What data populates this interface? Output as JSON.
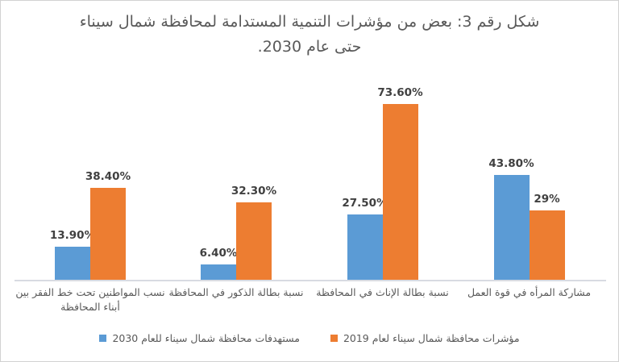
{
  "chart_data": {
    "type": "bar",
    "rtl": true,
    "title": "شكل رقم 3: بعض من مؤشرات التنمية المستدامة لمحافظة شمال سيناء\nحتى عام 2030.",
    "categories": [
      "نسب المواطنين تحت خط الفقر بين\nأبناء المحافظة",
      "نسبة بطالة الذكور في المحافظة",
      "نسبة بطالة الإناث في المحافظة",
      "مشاركة المرأه في قوة العمل"
    ],
    "series": [
      {
        "name": "مستهدفات محافظة شمال سيناء للعام 2030",
        "color": "#5B9BD5",
        "values": [
          13.9,
          6.4,
          27.5,
          43.8
        ],
        "labels": [
          "13.90%",
          "6.40%",
          "27.50%",
          "43.80%"
        ]
      },
      {
        "name": "مؤشرات محافظة شمال سيناء لعام 2019",
        "color": "#ED7D31",
        "values": [
          38.4,
          32.3,
          73.6,
          29
        ],
        "labels": [
          "38.40%",
          "32.30%",
          "73.60%",
          "29%"
        ]
      }
    ],
    "ylim": [
      0,
      80
    ],
    "value_unit": "%",
    "grid": false,
    "legend_position": "bottom",
    "legend_order_rtl": [
      "مؤشرات محافظة شمال سيناء لعام 2019",
      "مستهدفات محافظة شمال سيناء للعام 2030"
    ],
    "colors": {
      "series_2030_blue": "#5B9BD5",
      "series_2019_orange": "#ED7D31",
      "title_text": "#595959",
      "data_label_text": "#404040",
      "axis_line": "#D8DBE2"
    }
  }
}
